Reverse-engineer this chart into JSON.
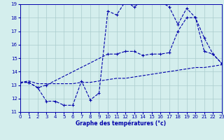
{
  "title": "Graphe des températures (°c)",
  "bg_color": "#d4eeed",
  "line_color": "#0000aa",
  "grid_color": "#aacccc",
  "xlim": [
    0,
    23
  ],
  "ylim": [
    11,
    19
  ],
  "yticks": [
    11,
    12,
    13,
    14,
    15,
    16,
    17,
    18,
    19
  ],
  "xticks": [
    0,
    1,
    2,
    3,
    4,
    5,
    6,
    7,
    8,
    9,
    10,
    11,
    12,
    13,
    14,
    15,
    16,
    17,
    18,
    19,
    20,
    21,
    22,
    23
  ],
  "curve1_x": [
    0,
    1,
    2,
    3,
    4,
    5,
    6,
    7,
    8,
    9,
    10,
    11,
    12,
    13,
    14,
    15,
    16,
    17,
    18,
    19,
    20,
    21,
    22,
    23
  ],
  "curve1_y": [
    13.2,
    13.2,
    12.8,
    11.8,
    11.8,
    11.5,
    11.5,
    13.3,
    11.9,
    12.4,
    18.5,
    18.2,
    19.2,
    18.8,
    19.2,
    19.2,
    19.2,
    18.8,
    17.5,
    18.7,
    18.0,
    16.5,
    15.3,
    14.6
  ],
  "curve2_x": [
    0,
    1,
    2,
    3,
    10,
    11,
    12,
    13,
    14,
    15,
    16,
    17,
    18,
    19,
    20,
    21,
    22,
    23
  ],
  "curve2_y": [
    13.2,
    13.2,
    12.8,
    13.0,
    15.3,
    15.3,
    15.5,
    15.5,
    15.2,
    15.3,
    15.3,
    15.4,
    17.0,
    18.0,
    18.0,
    15.5,
    15.3,
    14.6
  ],
  "curve3_x": [
    0,
    1,
    2,
    3,
    4,
    5,
    6,
    7,
    8,
    9,
    10,
    11,
    12,
    13,
    14,
    15,
    16,
    17,
    18,
    19,
    20,
    21,
    22,
    23
  ],
  "curve3_y": [
    13.2,
    13.3,
    13.1,
    13.1,
    13.1,
    13.1,
    13.1,
    13.2,
    13.2,
    13.3,
    13.4,
    13.5,
    13.5,
    13.6,
    13.7,
    13.8,
    13.9,
    14.0,
    14.1,
    14.2,
    14.3,
    14.3,
    14.4,
    14.5
  ]
}
